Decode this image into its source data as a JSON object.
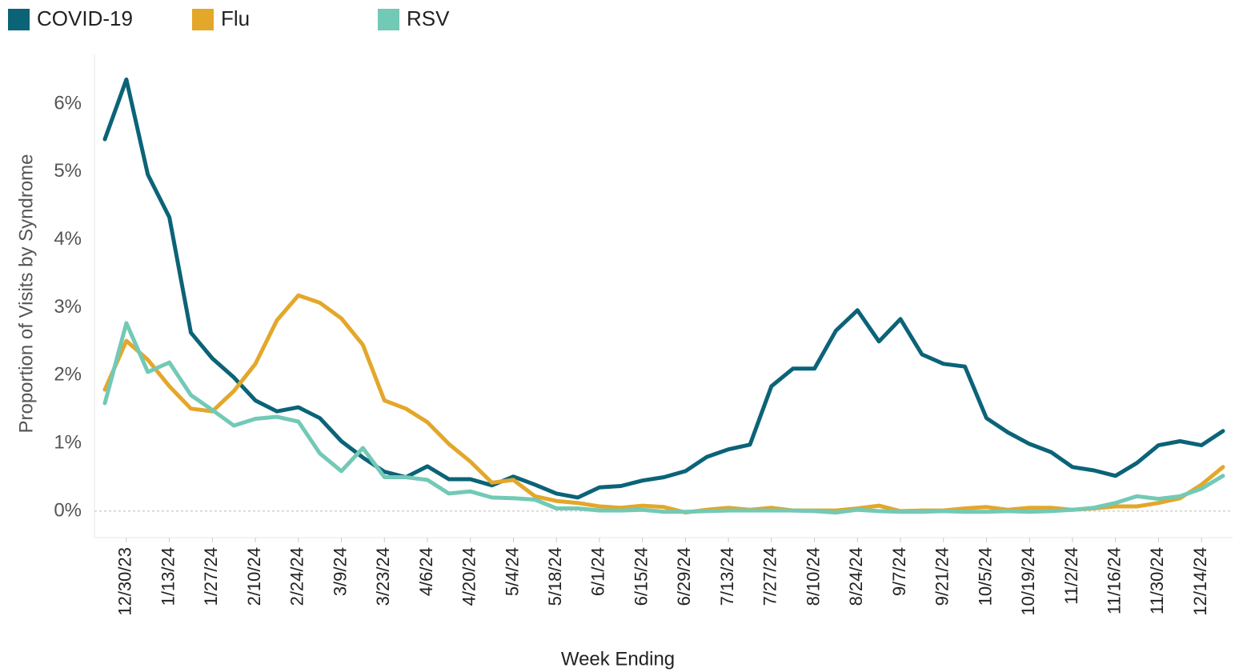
{
  "chart_data": {
    "type": "line",
    "x_label": "Week Ending",
    "y_label": "Proportion of Visits by Syndrome",
    "categories": [
      null,
      "12/30/23",
      null,
      "1/13/24",
      null,
      "1/27/24",
      null,
      "2/10/24",
      null,
      "2/24/24",
      null,
      "3/9/24",
      null,
      "3/23/24",
      null,
      "4/6/24",
      null,
      "4/20/24",
      null,
      "5/4/24",
      null,
      "5/18/24",
      null,
      "6/1/24",
      null,
      "6/15/24",
      null,
      "6/29/24",
      null,
      "7/13/24",
      null,
      "7/27/24",
      null,
      "8/10/24",
      null,
      "8/24/24",
      null,
      "9/7/24",
      null,
      "9/21/24",
      null,
      "10/5/24",
      null,
      "10/19/24",
      null,
      "11/2/24",
      null,
      "11/16/24",
      null,
      "11/30/24",
      null,
      "12/14/24",
      null
    ],
    "series": [
      {
        "name": "COVID-19",
        "color": "#0b6378",
        "values": [
          5.48,
          6.36,
          4.96,
          4.33,
          2.63,
          2.25,
          1.97,
          1.63,
          1.47,
          1.53,
          1.37,
          1.03,
          0.79,
          0.58,
          0.5,
          0.66,
          0.47,
          0.47,
          0.38,
          0.51,
          0.39,
          0.26,
          0.2,
          0.35,
          0.37,
          0.45,
          0.5,
          0.59,
          0.8,
          0.91,
          0.98,
          1.84,
          2.1,
          2.1,
          2.66,
          2.96,
          2.5,
          2.83,
          2.31,
          2.17,
          2.13,
          1.37,
          1.16,
          0.99,
          0.87,
          0.65,
          0.6,
          0.52,
          0.71,
          0.97,
          1.03,
          0.97,
          1.18
        ]
      },
      {
        "name": "Flu",
        "color": "#e3a72a",
        "values": [
          1.79,
          2.51,
          2.23,
          1.84,
          1.51,
          1.47,
          1.77,
          2.17,
          2.81,
          3.18,
          3.07,
          2.84,
          2.45,
          1.63,
          1.51,
          1.31,
          0.99,
          0.73,
          0.42,
          0.46,
          0.22,
          0.15,
          0.12,
          0.07,
          0.05,
          0.08,
          0.06,
          -0.02,
          0.02,
          0.05,
          0.02,
          0.05,
          0.01,
          0.01,
          0.01,
          0.04,
          0.08,
          0.0,
          0.01,
          0.01,
          0.04,
          0.06,
          0.02,
          0.05,
          0.05,
          0.02,
          0.04,
          0.07,
          0.07,
          0.12,
          0.19,
          0.39,
          0.65
        ]
      },
      {
        "name": "RSV",
        "color": "#72c9b6",
        "values": [
          1.59,
          2.77,
          2.05,
          2.19,
          1.71,
          1.49,
          1.26,
          1.36,
          1.39,
          1.32,
          0.85,
          0.59,
          0.93,
          0.5,
          0.5,
          0.46,
          0.26,
          0.29,
          0.2,
          0.19,
          0.17,
          0.04,
          0.04,
          0.01,
          0.01,
          0.02,
          -0.01,
          -0.01,
          0.0,
          0.01,
          0.01,
          0.01,
          0.01,
          0.0,
          -0.02,
          0.02,
          0.0,
          -0.01,
          -0.01,
          0.0,
          -0.01,
          -0.01,
          0.0,
          -0.01,
          0.0,
          0.02,
          0.05,
          0.12,
          0.22,
          0.18,
          0.22,
          0.33,
          0.52
        ]
      }
    ],
    "ylim": [
      -0.39,
      6.73
    ],
    "yticks": [
      {
        "value": 0,
        "label": "0%"
      },
      {
        "value": 1,
        "label": "1%"
      },
      {
        "value": 2,
        "label": "2%"
      },
      {
        "value": 3,
        "label": "3%"
      },
      {
        "value": 4,
        "label": "4%"
      },
      {
        "value": 5,
        "label": "5%"
      },
      {
        "value": 6,
        "label": "6%"
      }
    ],
    "zero_line": true,
    "grid": false,
    "legend": "top-left"
  }
}
